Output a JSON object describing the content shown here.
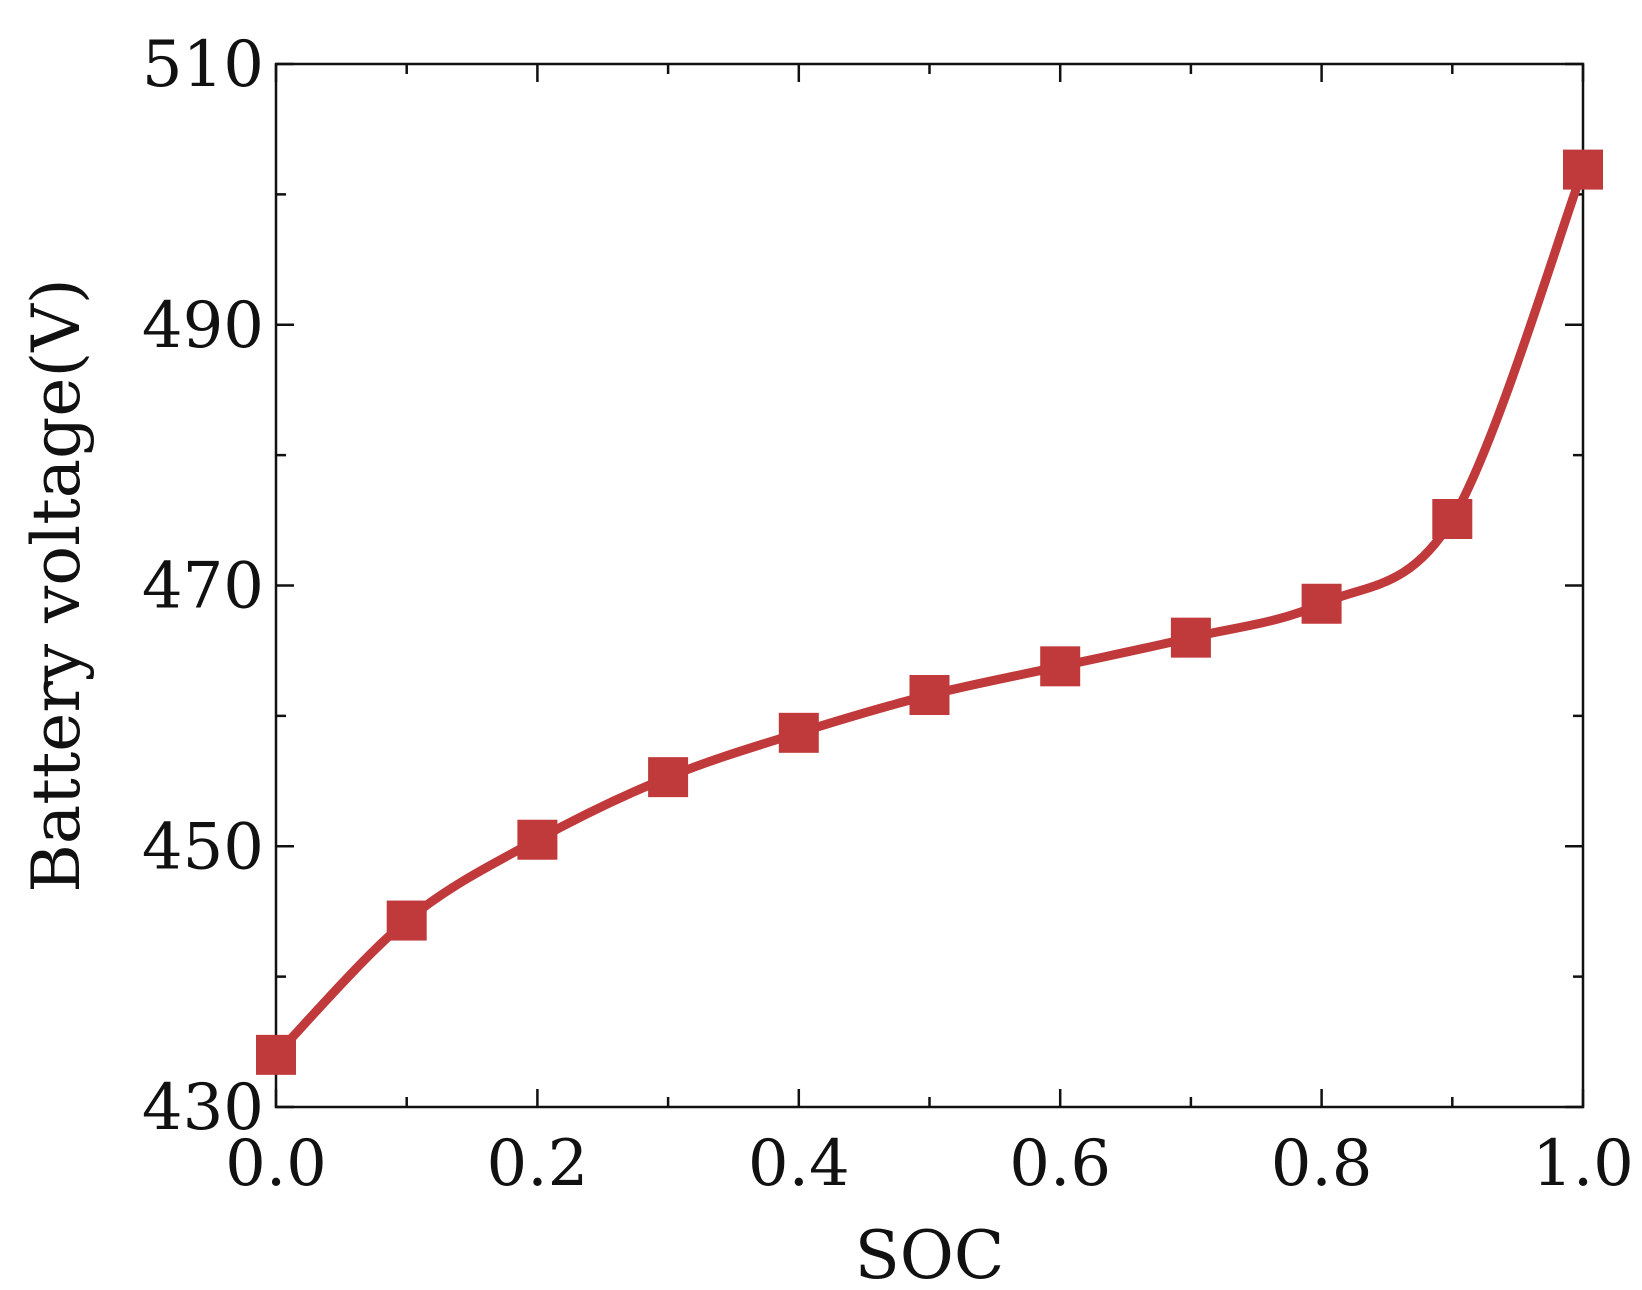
{
  "chart_data": {
    "type": "line",
    "title": "",
    "xlabel": "SOC",
    "ylabel": "Battery voltage(V)",
    "xlim": [
      0.0,
      1.0
    ],
    "ylim": [
      430,
      510
    ],
    "x_ticks": [
      "0.0",
      "0.2",
      "0.4",
      "0.6",
      "0.8",
      "1.0"
    ],
    "y_ticks": [
      "430",
      "450",
      "470",
      "490",
      "510"
    ],
    "grid": false,
    "legend": "none",
    "series": [
      {
        "color": "#c0393b",
        "marker": "square",
        "x": [
          0.0,
          0.1,
          0.2,
          0.3,
          0.4,
          0.5,
          0.6,
          0.7,
          0.8,
          0.9,
          1.0
        ],
        "y": [
          434.0,
          444.3,
          450.5,
          455.3,
          458.7,
          461.6,
          463.8,
          466.0,
          468.6,
          475.1,
          501.9
        ]
      }
    ]
  }
}
